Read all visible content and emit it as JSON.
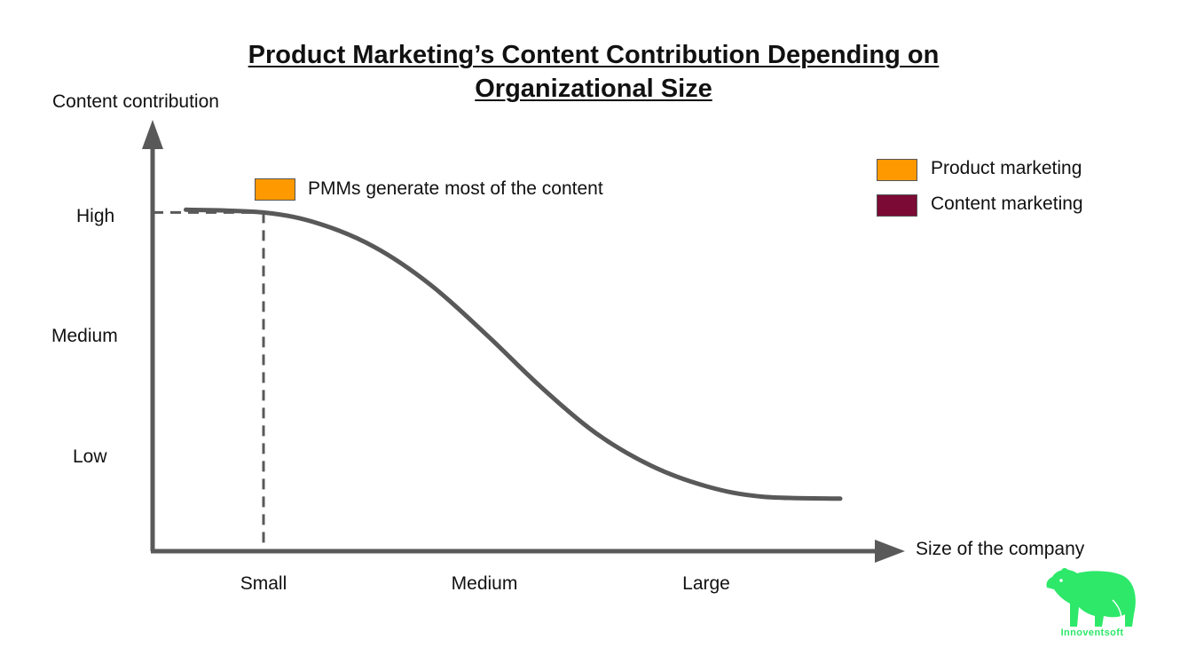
{
  "chart_data": {
    "type": "line",
    "title": "Product Marketing’s Content Contribution Depending on Organizational Size",
    "title_lines": [
      "Product Marketing’s Content Contribution Depending on",
      "Organizational Size"
    ],
    "xlabel": "Size of the company",
    "ylabel": "Content contribution",
    "x_tick_labels": [
      "Small",
      "Medium",
      "Large"
    ],
    "y_tick_labels": [
      "High",
      "Medium",
      "Low"
    ],
    "series": [
      {
        "color": "#595959",
        "x": [
          0.3,
          1.0,
          1.5,
          2.0,
          2.5,
          3.0,
          3.5,
          4.0,
          4.5,
          5.0,
          5.5,
          6.2
        ],
        "y": [
          3.95,
          3.92,
          3.8,
          3.55,
          3.15,
          2.62,
          2.05,
          1.55,
          1.2,
          0.98,
          0.87,
          0.85
        ]
      }
    ],
    "reference_point": {
      "x": 1.0,
      "y": 3.92
    },
    "grid": false,
    "legend": {
      "position": "top-right",
      "entries": [
        {
          "label": "Product marketing",
          "color": "#ff9900"
        },
        {
          "label": "Content marketing",
          "color": "#7b0a34"
        }
      ]
    },
    "annotation": {
      "text": "PMMs generate most of the content",
      "color": "#ff9900"
    }
  },
  "logo": {
    "text": "Innoventsoft",
    "color": "#2ee86a"
  }
}
